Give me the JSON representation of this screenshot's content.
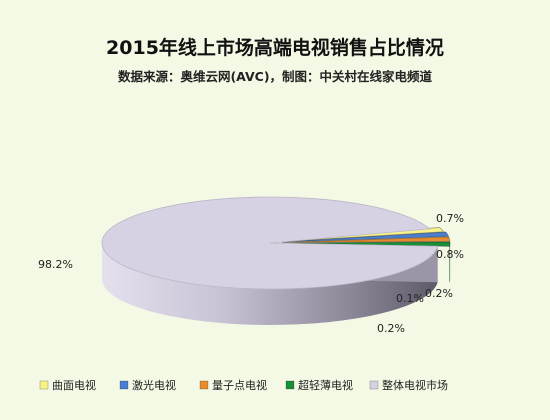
{
  "chart_data": {
    "type": "pie",
    "title": "2015年线上市场高端电视销售占比情况",
    "subtitle": "数据来源：奥维云网(AVC)，制图：中关村在线家电频道",
    "legend_position": "bottom",
    "three_d": true,
    "slices": [
      {
        "name": "曲面电视",
        "value": 0.7,
        "label": "0.7%",
        "color": "#f7f28a"
      },
      {
        "name": "激光电视",
        "value": 0.8,
        "label": "0.8%",
        "color": "#4a7fd0"
      },
      {
        "name": "量子点电视",
        "value": 0.2,
        "label": "0.2%",
        "color": "#e88a2e"
      },
      {
        "name": "超轻薄电视",
        "value": 0.1,
        "label": "0.1%",
        "color": "#1a8f3a"
      },
      {
        "name": "整体电视市场",
        "value": 98.2,
        "label": "98.2%",
        "color": "#d6d2e4"
      }
    ],
    "extra_labels": [
      "0.2%"
    ]
  }
}
